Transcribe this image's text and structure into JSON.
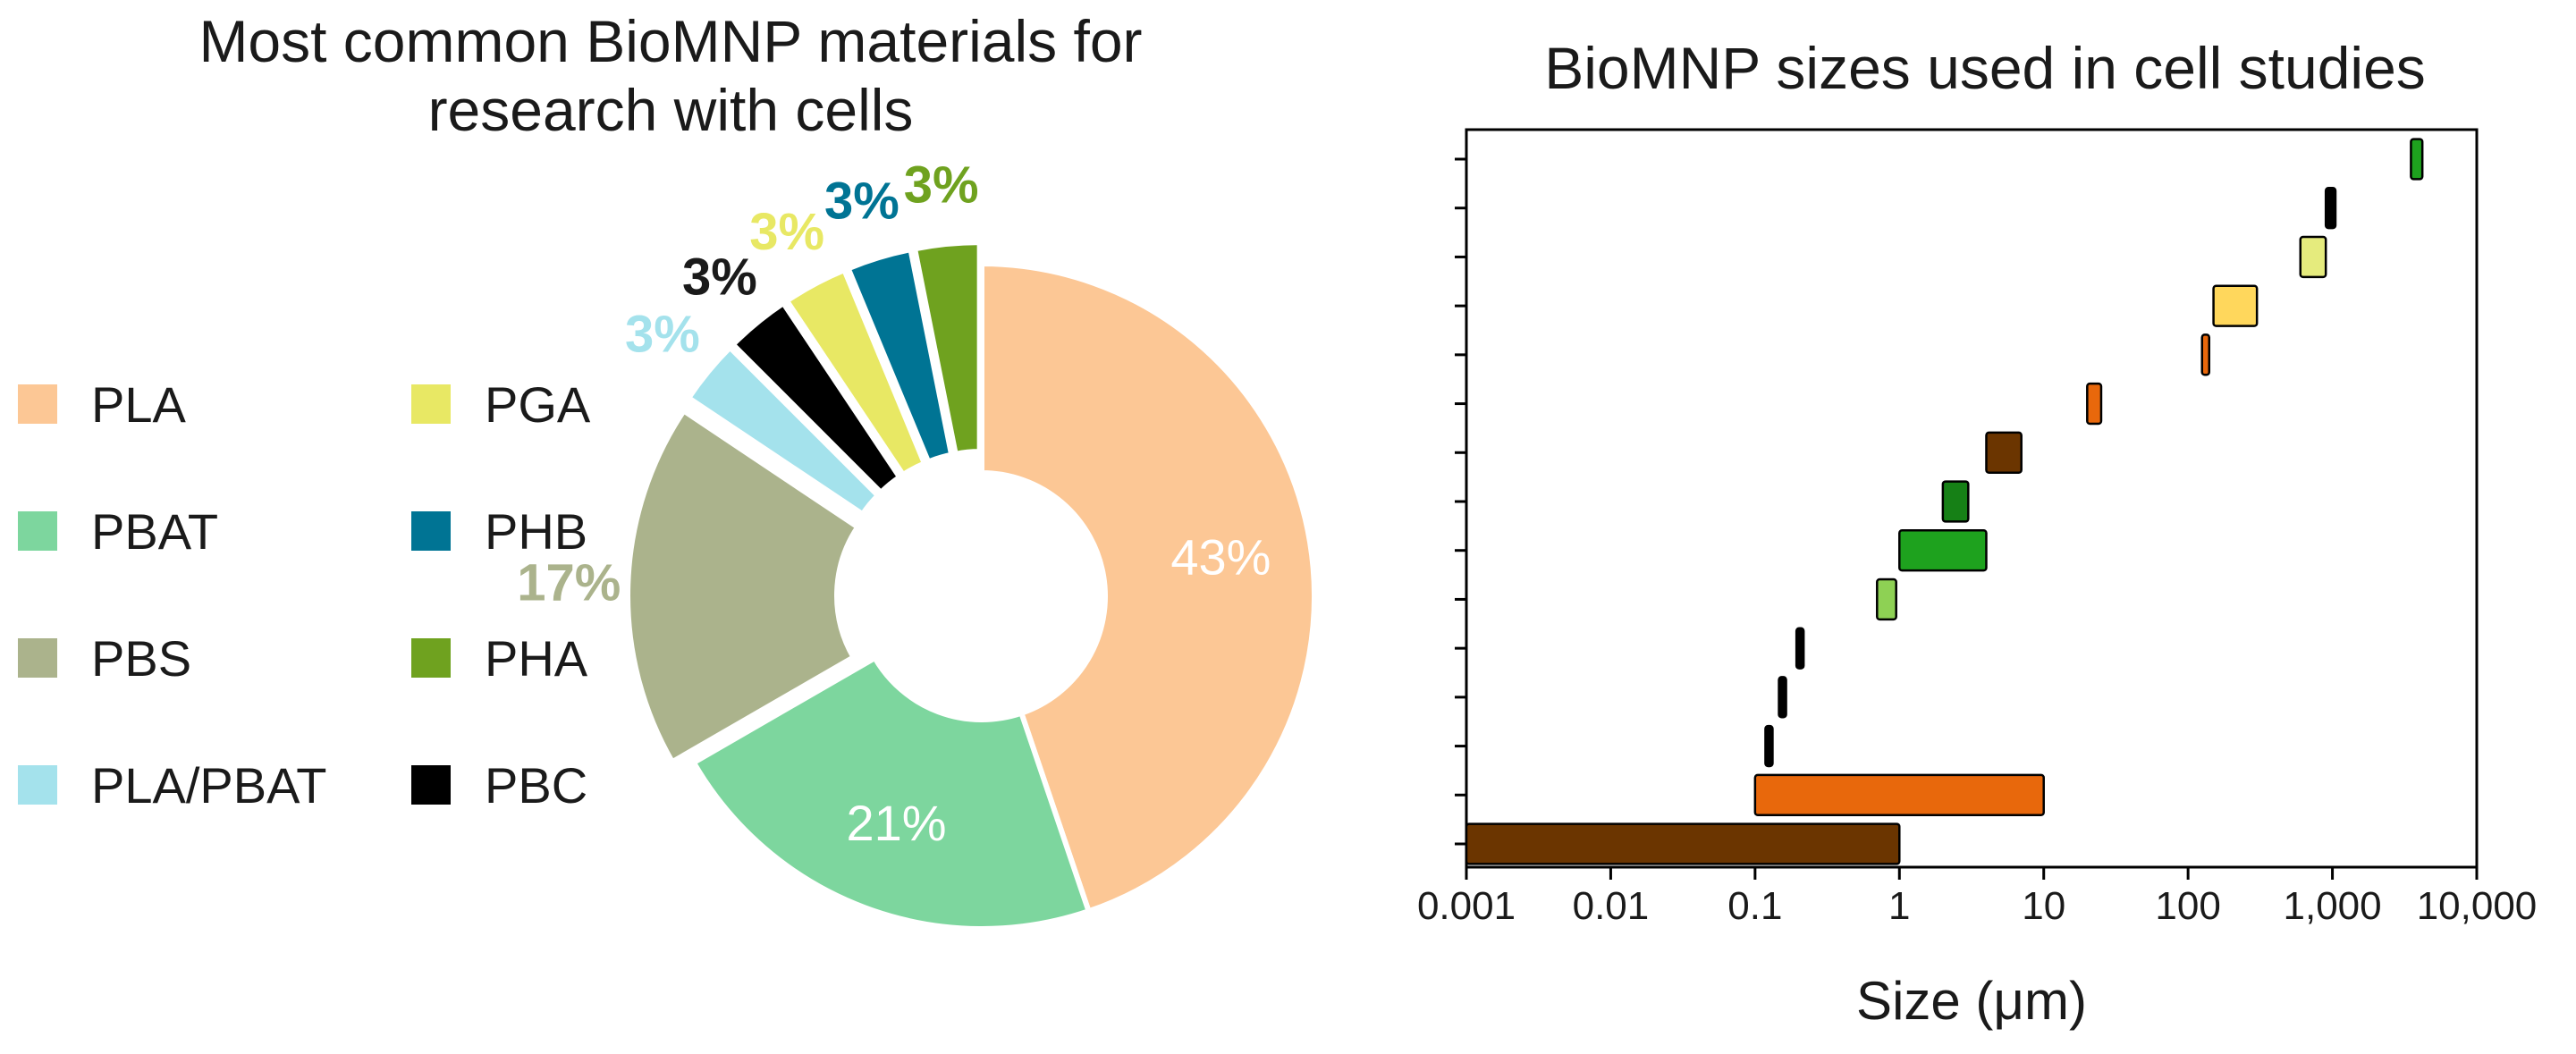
{
  "chart_data": [
    {
      "type": "pie",
      "variant": "donut",
      "title": "Most common BioMNP materials for research with cells",
      "title_lines": [
        "Most common BioMNP materials for",
        "research with cells"
      ],
      "legend_position": "left",
      "slices": [
        {
          "label": "PLA",
          "value": 43,
          "value_label": "43%",
          "color": "#FCC795"
        },
        {
          "label": "PBAT",
          "value": 21,
          "value_label": "21%",
          "color": "#7DD69E"
        },
        {
          "label": "PBS",
          "value": 17,
          "value_label": "17%",
          "color": "#ABB38C"
        },
        {
          "label": "PLA/PBAT",
          "value": 3,
          "value_label": "3%",
          "color": "#A4E2EC"
        },
        {
          "label": "PBC",
          "value": 3,
          "value_label": "3%",
          "color": "#000000"
        },
        {
          "label": "PGA",
          "value": 3,
          "value_label": "3%",
          "color": "#E8E864"
        },
        {
          "label": "PHB",
          "value": 3,
          "value_label": "3%",
          "color": "#007494"
        },
        {
          "label": "PHA",
          "value": 3,
          "value_label": "3%",
          "color": "#6FA21F"
        }
      ]
    },
    {
      "type": "range",
      "title": "BioMNP sizes used in cell studies",
      "xlabel": "Size (μm)",
      "x_scale": "log",
      "xlim": [
        0.001,
        10000
      ],
      "x_ticks": [
        0.001,
        0.01,
        0.1,
        1,
        10,
        100,
        1000,
        10000
      ],
      "x_tick_labels": [
        "0.001",
        "0.01",
        "0.1",
        "1",
        "10",
        "100",
        "1,000",
        "10,000"
      ],
      "y_tick_count": 15,
      "bars": [
        {
          "min": 0.001,
          "max": 1,
          "color": "#6B3500"
        },
        {
          "min": 0.1,
          "max": 10,
          "color": "#E8680C"
        },
        {
          "min": 0.12,
          "max": 0.13,
          "color": "#000000"
        },
        {
          "min": 0.15,
          "max": 0.16,
          "color": "#000000"
        },
        {
          "min": 0.2,
          "max": 0.21,
          "color": "#000000"
        },
        {
          "min": 0.7,
          "max": 0.95,
          "color": "#8ED154"
        },
        {
          "min": 1,
          "max": 4,
          "color": "#1EA21E"
        },
        {
          "min": 2,
          "max": 3,
          "color": "#168016"
        },
        {
          "min": 4,
          "max": 7,
          "color": "#6B3500"
        },
        {
          "min": 20,
          "max": 25,
          "color": "#E8680C"
        },
        {
          "min": 125,
          "max": 140,
          "color": "#E8680C"
        },
        {
          "min": 150,
          "max": 300,
          "color": "#FFD75C"
        },
        {
          "min": 600,
          "max": 900,
          "color": "#E5EB7D"
        },
        {
          "min": 900,
          "max": 1050,
          "color": "#000000"
        },
        {
          "min": 3500,
          "max": 4200,
          "color": "#1EA21E"
        }
      ]
    }
  ]
}
